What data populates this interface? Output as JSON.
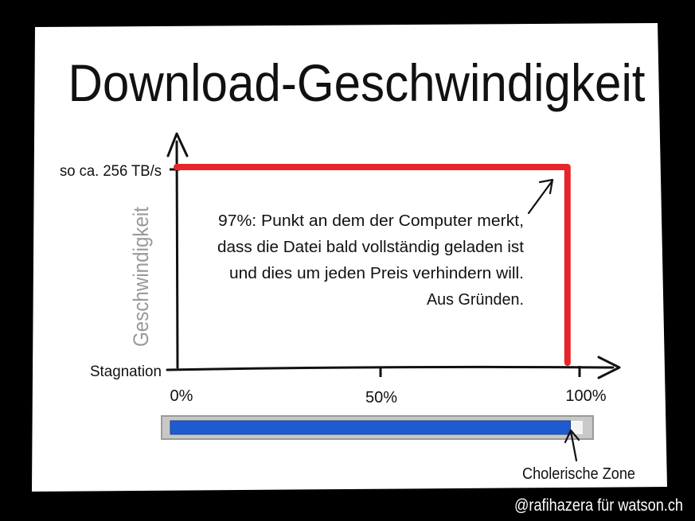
{
  "colors": {
    "background": "#000000",
    "paper": "#ffffff",
    "ink": "#111111",
    "speed_line": "#e8262a",
    "progress_fill": "#1f5bd0",
    "progress_track": "#c8c8c8",
    "ylabel": "#9a9a9a",
    "credit": "#ffffff"
  },
  "credit": "@rafihazera für watson.ch",
  "chart_data": {
    "type": "line",
    "title": "Download-Geschwindigkeit",
    "xlabel": "",
    "ylabel": "Geschwindigkeit",
    "x_ticks": [
      "0%",
      "50%",
      "100%"
    ],
    "y_ticks": [
      "Stagnation",
      "so ca. 256 TB/s"
    ],
    "xlim": [
      0,
      100
    ],
    "ylim": [
      0,
      1
    ],
    "grid": false,
    "series": [
      {
        "x": [
          0,
          97,
          97
        ],
        "y": [
          1,
          1,
          0
        ]
      }
    ],
    "annotation": {
      "lines": [
        "97%: Punkt an dem der Computer merkt,",
        "dass die Datei bald vollständig geladen ist",
        "und dies um jeden Preis verhindern will.",
        "Aus Gründen."
      ],
      "points_to": [
        97,
        1
      ]
    },
    "progress_bar": {
      "value": 0.97,
      "zone_label": "Cholerische Zone"
    }
  }
}
